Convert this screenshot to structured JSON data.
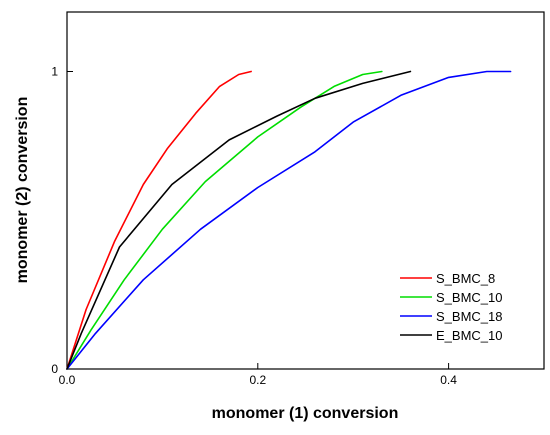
{
  "chart_data": {
    "type": "line",
    "xlabel": "monomer (1) conversion",
    "ylabel": "monomer (2) conversion",
    "xlim": [
      0,
      0.5
    ],
    "ylim": [
      0,
      1.2
    ],
    "x_ticks": [
      0.0,
      0.2,
      0.4
    ],
    "x_tick_labels": [
      "0.0",
      "0.2",
      "0.4"
    ],
    "y_ticks": [
      0,
      1
    ],
    "y_tick_labels": [
      "0",
      "1"
    ],
    "grid": false,
    "legend_position": "bottom-right",
    "series": [
      {
        "name": "S_BMC_8",
        "color": "#ff0000",
        "x": [
          0,
          0.02,
          0.05,
          0.08,
          0.105,
          0.135,
          0.16,
          0.18,
          0.193
        ],
        "y": [
          0,
          0.2,
          0.43,
          0.62,
          0.74,
          0.86,
          0.95,
          0.99,
          1.0
        ]
      },
      {
        "name": "S_BMC_10",
        "color": "#00dd00",
        "x": [
          0,
          0.025,
          0.06,
          0.1,
          0.145,
          0.2,
          0.245,
          0.28,
          0.31,
          0.33
        ],
        "y": [
          0,
          0.13,
          0.3,
          0.47,
          0.63,
          0.78,
          0.88,
          0.95,
          0.99,
          1.0
        ]
      },
      {
        "name": "S_BMC_18",
        "color": "#0000ff",
        "x": [
          0,
          0.03,
          0.08,
          0.14,
          0.2,
          0.26,
          0.3,
          0.35,
          0.4,
          0.44,
          0.465
        ],
        "y": [
          0,
          0.12,
          0.3,
          0.47,
          0.61,
          0.73,
          0.83,
          0.92,
          0.98,
          1.0,
          1.0
        ]
      },
      {
        "name": "E_BMC_10",
        "color": "#000000",
        "x": [
          0,
          0.015,
          0.055,
          0.11,
          0.17,
          0.22,
          0.26,
          0.31,
          0.36
        ],
        "y": [
          0,
          0.12,
          0.41,
          0.62,
          0.77,
          0.85,
          0.91,
          0.96,
          1.0
        ]
      }
    ]
  }
}
